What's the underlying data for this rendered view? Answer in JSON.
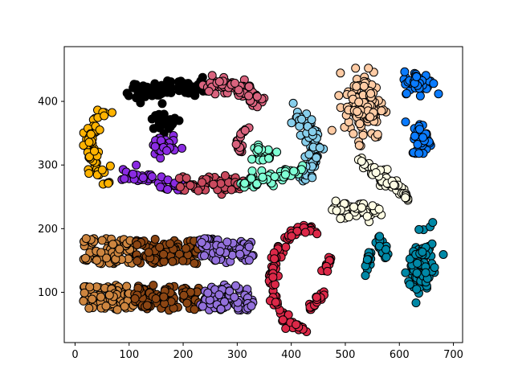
{
  "chart_data": {
    "type": "scatter",
    "title": "",
    "xlabel": "",
    "ylabel": "",
    "xlim": [
      -20,
      717
    ],
    "ylim": [
      21,
      486
    ],
    "xticks": [
      0,
      100,
      200,
      300,
      400,
      500,
      600,
      700
    ],
    "yticks": [
      100,
      200,
      300,
      400
    ],
    "grid": false,
    "marker_edge_color": "#000000",
    "clusters": [
      {
        "color": "#FFB300",
        "shape": "arc",
        "cx": 175,
        "cy": 330,
        "rx": 150,
        "ry": 80,
        "a0": 140,
        "a1": 225,
        "n": 70,
        "spread": 14
      },
      {
        "color": "#000000",
        "shape": "band",
        "x0": 105,
        "y0": 415,
        "x1": 245,
        "y1": 425,
        "n": 85,
        "spread": 14
      },
      {
        "color": "#000000",
        "shape": "blob",
        "cx": 163,
        "cy": 365,
        "sx": 22,
        "sy": 10,
        "n": 30
      },
      {
        "color": "#D9637E",
        "shape": "arc",
        "cx": 255,
        "cy": 355,
        "rx": 115,
        "ry": 70,
        "a0": 40,
        "a1": 95,
        "n": 80,
        "spread": 13
      },
      {
        "color": "#87CEEB",
        "shape": "arc",
        "cx": 325,
        "cy": 325,
        "rx": 120,
        "ry": 80,
        "a0": -35,
        "a1": 45,
        "n": 75,
        "spread": 14
      },
      {
        "color": "#8A2BE2",
        "shape": "blob",
        "cx": 162,
        "cy": 330,
        "sx": 20,
        "sy": 15,
        "n": 35
      },
      {
        "color": "#8A2BE2",
        "shape": "band",
        "x0": 95,
        "y0": 285,
        "x1": 200,
        "y1": 265,
        "n": 55,
        "spread": 10
      },
      {
        "color": "#C94A5E",
        "shape": "band",
        "x0": 195,
        "y0": 270,
        "x1": 310,
        "y1": 270,
        "n": 60,
        "spread": 12
      },
      {
        "color": "#7FFFD4",
        "shape": "band",
        "x0": 310,
        "y0": 270,
        "x1": 415,
        "y1": 290,
        "n": 60,
        "spread": 11
      },
      {
        "color": "#7FFFD4",
        "shape": "blob",
        "cx": 345,
        "cy": 320,
        "sx": 15,
        "sy": 12,
        "n": 25
      },
      {
        "color": "#D9637E",
        "shape": "arc",
        "cx": 330,
        "cy": 335,
        "rx": 28,
        "ry": 25,
        "a0": 95,
        "a1": 215,
        "n": 25,
        "spread": 5
      },
      {
        "color": "#FFCBA4",
        "shape": "blob",
        "cx": 535,
        "cy": 395,
        "sx": 30,
        "sy": 45,
        "n": 130
      },
      {
        "color": "#0A7BFF",
        "shape": "blob",
        "cx": 635,
        "cy": 430,
        "sx": 22,
        "sy": 14,
        "n": 55
      },
      {
        "color": "#0A7BFF",
        "shape": "blob",
        "cx": 642,
        "cy": 340,
        "sx": 15,
        "sy": 22,
        "n": 45
      },
      {
        "color": "#FFFDE4",
        "shape": "band",
        "x0": 530,
        "y0": 305,
        "x1": 625,
        "y1": 245,
        "n": 70,
        "spread": 11
      },
      {
        "color": "#FFFDE4",
        "shape": "band",
        "x0": 475,
        "y0": 235,
        "x1": 560,
        "y1": 225,
        "n": 45,
        "spread": 12
      },
      {
        "color": "#0088A6",
        "shape": "blob",
        "cx": 640,
        "cy": 140,
        "sx": 18,
        "sy": 40,
        "n": 100
      },
      {
        "color": "#0088A6",
        "shape": "band",
        "x0": 560,
        "y0": 185,
        "x1": 575,
        "y1": 160,
        "n": 20,
        "spread": 6
      },
      {
        "color": "#0088A6",
        "shape": "band",
        "x0": 545,
        "y0": 165,
        "x1": 535,
        "y1": 125,
        "n": 15,
        "spread": 6
      },
      {
        "color": "#DC2848",
        "shape": "arc",
        "cx": 430,
        "cy": 120,
        "rx": 65,
        "ry": 80,
        "a0": 75,
        "a1": 270,
        "n": 95,
        "spread": 9
      },
      {
        "color": "#DC2848",
        "shape": "band",
        "x0": 435,
        "y0": 75,
        "x1": 460,
        "y1": 100,
        "n": 20,
        "spread": 7
      },
      {
        "color": "#DC2848",
        "shape": "band",
        "x0": 460,
        "y0": 130,
        "x1": 475,
        "y1": 155,
        "n": 15,
        "spread": 6
      },
      {
        "color": "#CD853F",
        "shape": "rect",
        "x0": 15,
        "x1": 110,
        "y0": 145,
        "y1": 185,
        "n": 75
      },
      {
        "color": "#CD853F",
        "shape": "rect",
        "x0": 15,
        "x1": 110,
        "y0": 72,
        "y1": 112,
        "n": 75
      },
      {
        "color": "#8B4513",
        "shape": "rect",
        "x0": 110,
        "x1": 230,
        "y0": 145,
        "y1": 185,
        "n": 90
      },
      {
        "color": "#8B4513",
        "shape": "rect",
        "x0": 110,
        "x1": 230,
        "y0": 70,
        "y1": 112,
        "n": 90
      },
      {
        "color": "#9370DB",
        "shape": "rect",
        "x0": 230,
        "x1": 330,
        "y0": 145,
        "y1": 185,
        "n": 75
      },
      {
        "color": "#9370DB",
        "shape": "rect",
        "x0": 230,
        "x1": 330,
        "y0": 72,
        "y1": 112,
        "n": 75
      }
    ]
  }
}
